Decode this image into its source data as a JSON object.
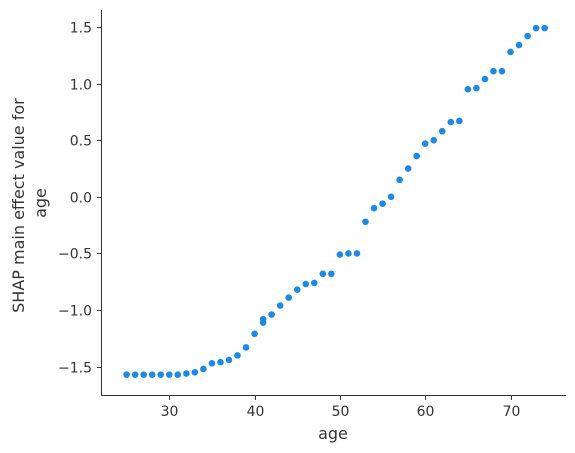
{
  "chart_data": {
    "type": "scatter",
    "xlabel": "age",
    "ylabel_lines": [
      "SHAP main effect value for",
      "age"
    ],
    "xlim": [
      22.0,
      76.5
    ],
    "ylim": [
      -1.75,
      1.65
    ],
    "xticks": [
      {
        "value": 30,
        "label": "30"
      },
      {
        "value": 40,
        "label": "40"
      },
      {
        "value": 50,
        "label": "50"
      },
      {
        "value": 60,
        "label": "60"
      },
      {
        "value": 70,
        "label": "70"
      }
    ],
    "yticks": [
      {
        "value": -1.5,
        "label": "−1.5"
      },
      {
        "value": -1.0,
        "label": "−1.0"
      },
      {
        "value": -0.5,
        "label": "−0.5"
      },
      {
        "value": 0.0,
        "label": "0.0"
      },
      {
        "value": 0.5,
        "label": "0.5"
      },
      {
        "value": 1.0,
        "label": "1.0"
      },
      {
        "value": 1.5,
        "label": "1.5"
      }
    ],
    "grid": false,
    "marker_color": "#1e88e5",
    "points": [
      {
        "x": 25,
        "y": -1.57
      },
      {
        "x": 26,
        "y": -1.57
      },
      {
        "x": 27,
        "y": -1.57
      },
      {
        "x": 28,
        "y": -1.57
      },
      {
        "x": 29,
        "y": -1.57
      },
      {
        "x": 30,
        "y": -1.57
      },
      {
        "x": 31,
        "y": -1.57
      },
      {
        "x": 32,
        "y": -1.56
      },
      {
        "x": 33,
        "y": -1.55
      },
      {
        "x": 34,
        "y": -1.52
      },
      {
        "x": 35,
        "y": -1.47
      },
      {
        "x": 36,
        "y": -1.46
      },
      {
        "x": 37,
        "y": -1.44
      },
      {
        "x": 38,
        "y": -1.4
      },
      {
        "x": 39,
        "y": -1.33
      },
      {
        "x": 40,
        "y": -1.21
      },
      {
        "x": 41,
        "y": -1.08
      },
      {
        "x": 41,
        "y": -1.11
      },
      {
        "x": 42,
        "y": -1.04
      },
      {
        "x": 43,
        "y": -0.96
      },
      {
        "x": 44,
        "y": -0.89
      },
      {
        "x": 45,
        "y": -0.82
      },
      {
        "x": 46,
        "y": -0.77
      },
      {
        "x": 47,
        "y": -0.76
      },
      {
        "x": 48,
        "y": -0.68
      },
      {
        "x": 49,
        "y": -0.68
      },
      {
        "x": 50,
        "y": -0.51
      },
      {
        "x": 51,
        "y": -0.5
      },
      {
        "x": 52,
        "y": -0.5
      },
      {
        "x": 53,
        "y": -0.22
      },
      {
        "x": 54,
        "y": -0.1
      },
      {
        "x": 55,
        "y": -0.06
      },
      {
        "x": 56,
        "y": 0.0
      },
      {
        "x": 57,
        "y": 0.15
      },
      {
        "x": 58,
        "y": 0.25
      },
      {
        "x": 59,
        "y": 0.36
      },
      {
        "x": 60,
        "y": 0.47
      },
      {
        "x": 61,
        "y": 0.5
      },
      {
        "x": 62,
        "y": 0.58
      },
      {
        "x": 63,
        "y": 0.66
      },
      {
        "x": 64,
        "y": 0.67
      },
      {
        "x": 65,
        "y": 0.95
      },
      {
        "x": 66,
        "y": 0.96
      },
      {
        "x": 67,
        "y": 1.04
      },
      {
        "x": 68,
        "y": 1.11
      },
      {
        "x": 69,
        "y": 1.11
      },
      {
        "x": 70,
        "y": 1.28
      },
      {
        "x": 71,
        "y": 1.34
      },
      {
        "x": 72,
        "y": 1.42
      },
      {
        "x": 73,
        "y": 1.49
      },
      {
        "x": 74,
        "y": 1.49
      }
    ]
  }
}
